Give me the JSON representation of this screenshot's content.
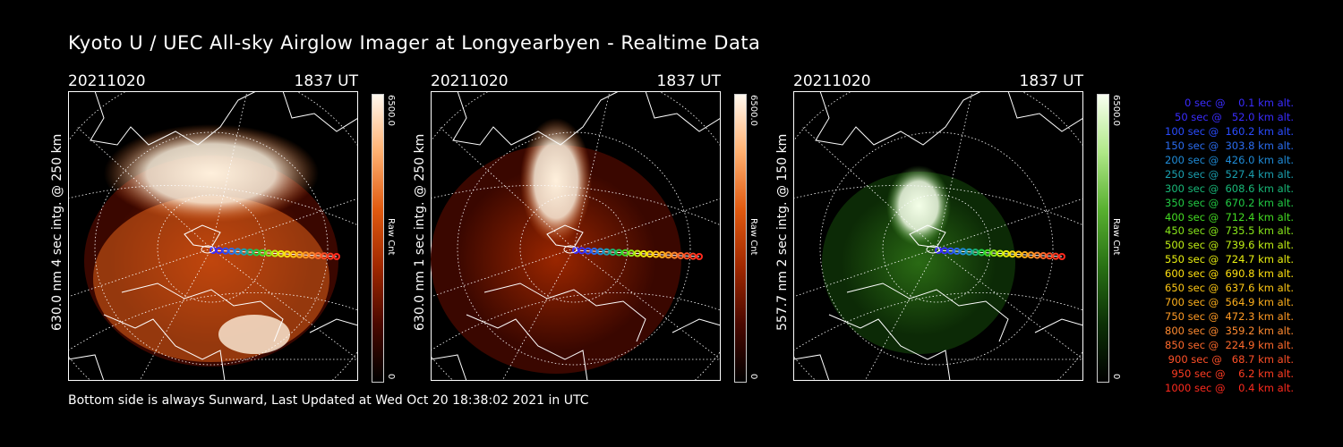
{
  "title": "Kyoto U / UEC All-sky Airglow Imager at Longyearbyen - Realtime Data",
  "footer": "Bottom side is always Sunward, Last Updated at Wed Oct 20 18:38:02 2021 in UTC",
  "colors": {
    "red": "#ff3c1e",
    "green": "#2ecc40"
  },
  "chart_data": [
    {
      "type": "heatmap",
      "date": "20211020",
      "time": "1837 UT",
      "ylabel": "630.0 nm  4 sec intg. @ 250 km",
      "colorbar": {
        "max": "6500.0",
        "min": "0",
        "unit": "Raw Cnt"
      },
      "colormap": "red"
    },
    {
      "type": "heatmap",
      "date": "20211020",
      "time": "1837 UT",
      "ylabel": "630.0 nm  1 sec intg. @ 250 km",
      "colorbar": {
        "max": "6500.0",
        "min": "0",
        "unit": "Raw Cnt"
      },
      "colormap": "red"
    },
    {
      "type": "heatmap",
      "date": "20211020",
      "time": "1837 UT",
      "ylabel": "557.7 nm  2 sec intg. @ 150 km",
      "colorbar": {
        "max": "6500.0",
        "min": "0",
        "unit": "Raw Cnt"
      },
      "colormap": "green"
    }
  ],
  "legend": [
    {
      "sec": "0",
      "alt": "0.1",
      "color": "#3a2cff"
    },
    {
      "sec": "50",
      "alt": "52.0",
      "color": "#3a2cff"
    },
    {
      "sec": "100",
      "alt": "160.2",
      "color": "#2a4cff"
    },
    {
      "sec": "150",
      "alt": "303.8",
      "color": "#2a6cf0"
    },
    {
      "sec": "200",
      "alt": "426.0",
      "color": "#1f8cd8"
    },
    {
      "sec": "250",
      "alt": "527.4",
      "color": "#1aa0b0"
    },
    {
      "sec": "300",
      "alt": "608.6",
      "color": "#18b878"
    },
    {
      "sec": "350",
      "alt": "670.2",
      "color": "#22cc44"
    },
    {
      "sec": "400",
      "alt": "712.4",
      "color": "#44dd22"
    },
    {
      "sec": "450",
      "alt": "735.5",
      "color": "#88e61a"
    },
    {
      "sec": "500",
      "alt": "739.6",
      "color": "#c0ee14"
    },
    {
      "sec": "550",
      "alt": "724.7",
      "color": "#eaf010"
    },
    {
      "sec": "600",
      "alt": "690.8",
      "color": "#ffe010"
    },
    {
      "sec": "650",
      "alt": "637.6",
      "color": "#ffc814"
    },
    {
      "sec": "700",
      "alt": "564.9",
      "color": "#ffb01c"
    },
    {
      "sec": "750",
      "alt": "472.3",
      "color": "#ff9a24"
    },
    {
      "sec": "800",
      "alt": "359.2",
      "color": "#ff8a30"
    },
    {
      "sec": "850",
      "alt": "224.9",
      "color": "#ff6a2c"
    },
    {
      "sec": "900",
      "alt": "68.7",
      "color": "#ff5028"
    },
    {
      "sec": "950",
      "alt": "6.2",
      "color": "#ff3c22"
    },
    {
      "sec": "1000",
      "alt": "0.4",
      "color": "#ff2a1e"
    }
  ]
}
